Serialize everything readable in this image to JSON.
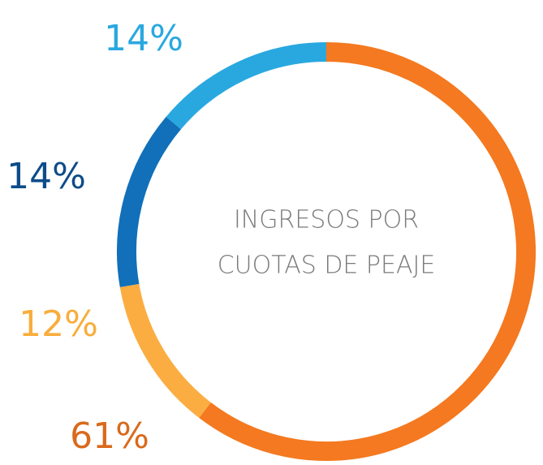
{
  "chart_data": {
    "type": "donut",
    "center_text": [
      "INGRESOS POR",
      "CUOTAS DE PEAJE"
    ],
    "values": [
      61,
      12,
      14,
      14
    ],
    "value_labels": [
      "61%",
      "12%",
      "14%",
      "14%"
    ],
    "colors": [
      "#f47920",
      "#fbad41",
      "#1170b9",
      "#29a8e0"
    ],
    "label_colors": [
      "#d96a1c",
      "#f9ad3c",
      "#0e4c8a",
      "#29a8e0"
    ]
  }
}
